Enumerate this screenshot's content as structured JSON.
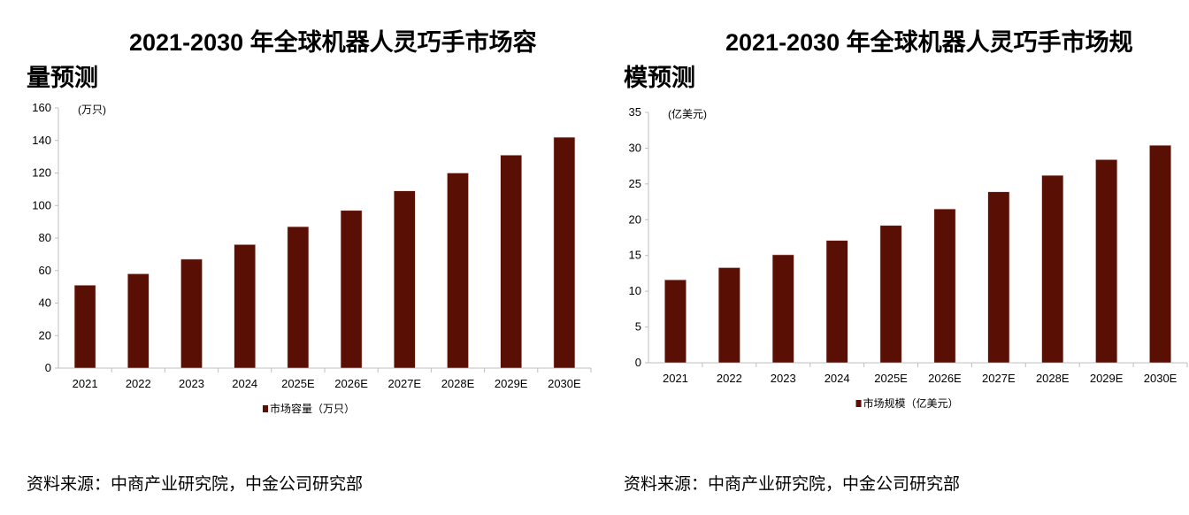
{
  "colors": {
    "bar": "#5a0f05",
    "axis": "#bfbfbf"
  },
  "chart_data": [
    {
      "type": "bar",
      "title_line1": "2021-2030 年全球机器人灵巧手市场容",
      "title_line2": "量预测",
      "unit": "(万只)",
      "legend": "市场容量（万只）",
      "legend_position": "bottom",
      "categories": [
        "2021",
        "2022",
        "2023",
        "2024",
        "2025E",
        "2026E",
        "2027E",
        "2028E",
        "2029E",
        "2030E"
      ],
      "values": [
        51,
        58,
        67,
        76,
        87,
        97,
        109,
        120,
        131,
        142
      ],
      "ylim": [
        0,
        160
      ],
      "yticks": [
        "0",
        "20",
        "40",
        "60",
        "80",
        "100",
        "120",
        "140",
        "160"
      ],
      "source": "资料来源：中商产业研究院，中金公司研究部"
    },
    {
      "type": "bar",
      "title_line1": "2021-2030 年全球机器人灵巧手市场规",
      "title_line2": "模预测",
      "unit": "(亿美元)",
      "legend": "市场规模（亿美元）",
      "legend_position": "bottom",
      "categories": [
        "2021",
        "2022",
        "2023",
        "2024",
        "2025E",
        "2026E",
        "2027E",
        "2028E",
        "2029E",
        "2030E"
      ],
      "values": [
        11.6,
        13.3,
        15.1,
        17.1,
        19.2,
        21.5,
        23.9,
        26.2,
        28.4,
        30.4
      ],
      "ylim": [
        0,
        35
      ],
      "yticks": [
        "0",
        "5",
        "10",
        "15",
        "20",
        "25",
        "30",
        "35"
      ],
      "source": "资料来源：中商产业研究院，中金公司研究部"
    }
  ]
}
